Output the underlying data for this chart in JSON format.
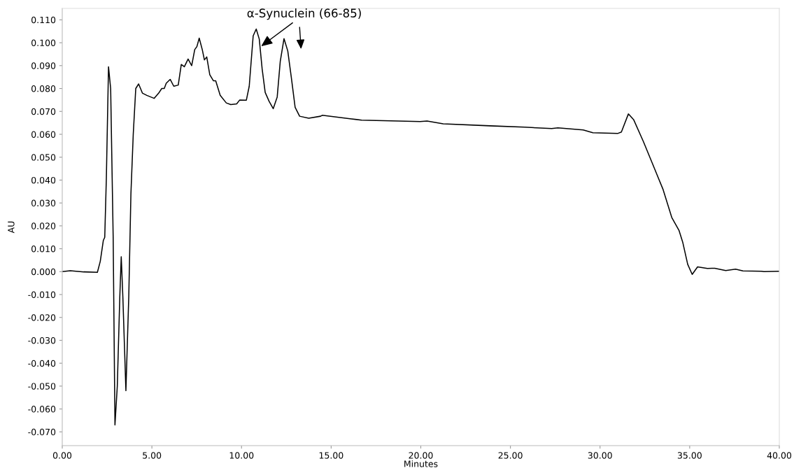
{
  "chart_data": {
    "type": "line",
    "xlabel": "Minutes",
    "ylabel": "AU",
    "series": [
      {
        "color": "#000000",
        "x": [
          0,
          0.45,
          1.2,
          1.96,
          2.12,
          2.29,
          2.37,
          2.46,
          2.58,
          2.7,
          2.84,
          2.94,
          3.07,
          3.21,
          3.29,
          3.38,
          3.55,
          3.71,
          3.83,
          3.96,
          4.1,
          4.26,
          4.47,
          4.72,
          5.13,
          5.38,
          5.55,
          5.69,
          5.8,
          6.02,
          6.22,
          6.47,
          6.64,
          6.81,
          7.02,
          7.22,
          7.39,
          7.51,
          7.64,
          7.81,
          7.93,
          8.06,
          8.23,
          8.43,
          8.56,
          8.81,
          9.15,
          9.4,
          9.73,
          9.9,
          10.27,
          10.43,
          10.65,
          10.82,
          10.99,
          11.15,
          11.32,
          11.54,
          11.77,
          11.99,
          12.16,
          12.37,
          12.58,
          12.78,
          12.99,
          13.24,
          13.75,
          14.41,
          14.5,
          16.05,
          16.7,
          19.96,
          20.35,
          21.25,
          23.87,
          25.8,
          27.3,
          27.65,
          29.06,
          29.6,
          31.0,
          31.19,
          31.58,
          31.88,
          32.42,
          32.97,
          33.52,
          34.0,
          34.41,
          34.62,
          34.89,
          35.14,
          35.44,
          35.99,
          36.4,
          37.01,
          37.56,
          37.97,
          39.0,
          39.14,
          40.0
        ],
        "values": [
          0.0,
          0.0004,
          -0.0001,
          -0.0003,
          0.0045,
          0.0136,
          0.015,
          0.041,
          0.0895,
          0.08,
          0.015,
          -0.067,
          -0.05,
          -0.011,
          0.0065,
          -0.011,
          -0.052,
          -0.011,
          0.034,
          0.06,
          0.08,
          0.082,
          0.078,
          0.077,
          0.0757,
          0.078,
          0.08,
          0.08,
          0.0823,
          0.084,
          0.081,
          0.0815,
          0.0905,
          0.0895,
          0.0929,
          0.09,
          0.097,
          0.0983,
          0.102,
          0.097,
          0.0925,
          0.0938,
          0.086,
          0.0834,
          0.0834,
          0.077,
          0.0737,
          0.073,
          0.0733,
          0.075,
          0.0749,
          0.081,
          0.103,
          0.106,
          0.1016,
          0.0886,
          0.0783,
          0.0744,
          0.0712,
          0.0763,
          0.0918,
          0.1018,
          0.0964,
          0.0847,
          0.0718,
          0.0679,
          0.067,
          0.0679,
          0.0683,
          0.0668,
          0.0662,
          0.0656,
          0.0658,
          0.0646,
          0.0637,
          0.0631,
          0.0625,
          0.0628,
          0.0619,
          0.0607,
          0.0604,
          0.061,
          0.0689,
          0.0663,
          0.0568,
          0.0463,
          0.0358,
          0.0237,
          0.0179,
          0.0126,
          0.0032,
          -0.0012,
          0.0021,
          0.0014,
          0.0015,
          0.0005,
          0.0011,
          0.0003,
          0.0002,
          0.0,
          0.0002
        ]
      }
    ],
    "xlim": [
      0,
      40
    ],
    "xticks": [
      {
        "value": 0,
        "label": "0.00"
      },
      {
        "value": 5,
        "label": "5.00"
      },
      {
        "value": 10,
        "label": "10.00"
      },
      {
        "value": 15,
        "label": "15.00"
      },
      {
        "value": 20,
        "label": "20.00"
      },
      {
        "value": 25,
        "label": "25.00"
      },
      {
        "value": 30,
        "label": "30.00"
      },
      {
        "value": 35,
        "label": "35.00"
      },
      {
        "value": 40,
        "label": "40.00"
      }
    ],
    "ylim": [
      -0.076,
      0.115
    ],
    "yticks": [
      {
        "value": -0.07,
        "label": "-0.070"
      },
      {
        "value": -0.06,
        "label": "-0.060"
      },
      {
        "value": -0.05,
        "label": "-0.050"
      },
      {
        "value": -0.04,
        "label": "-0.040"
      },
      {
        "value": -0.03,
        "label": "-0.030"
      },
      {
        "value": -0.02,
        "label": "-0.020"
      },
      {
        "value": -0.01,
        "label": "-0.010"
      },
      {
        "value": 0.0,
        "label": "0.000"
      },
      {
        "value": 0.01,
        "label": "0.010"
      },
      {
        "value": 0.02,
        "label": "0.020"
      },
      {
        "value": 0.03,
        "label": "0.030"
      },
      {
        "value": 0.04,
        "label": "0.040"
      },
      {
        "value": 0.05,
        "label": "0.050"
      },
      {
        "value": 0.06,
        "label": "0.060"
      },
      {
        "value": 0.07,
        "label": "0.070"
      },
      {
        "value": 0.08,
        "label": "0.080"
      },
      {
        "value": 0.09,
        "label": "0.090"
      },
      {
        "value": 0.1,
        "label": "0.100"
      },
      {
        "value": 0.11,
        "label": "0.110"
      }
    ],
    "grid": false,
    "legend": false,
    "marker": "none",
    "line_style": "solid",
    "annotations": [
      {
        "text": "α-Synuclein (66-85)",
        "x": 11.1,
        "y": 0.0985
      }
    ]
  }
}
